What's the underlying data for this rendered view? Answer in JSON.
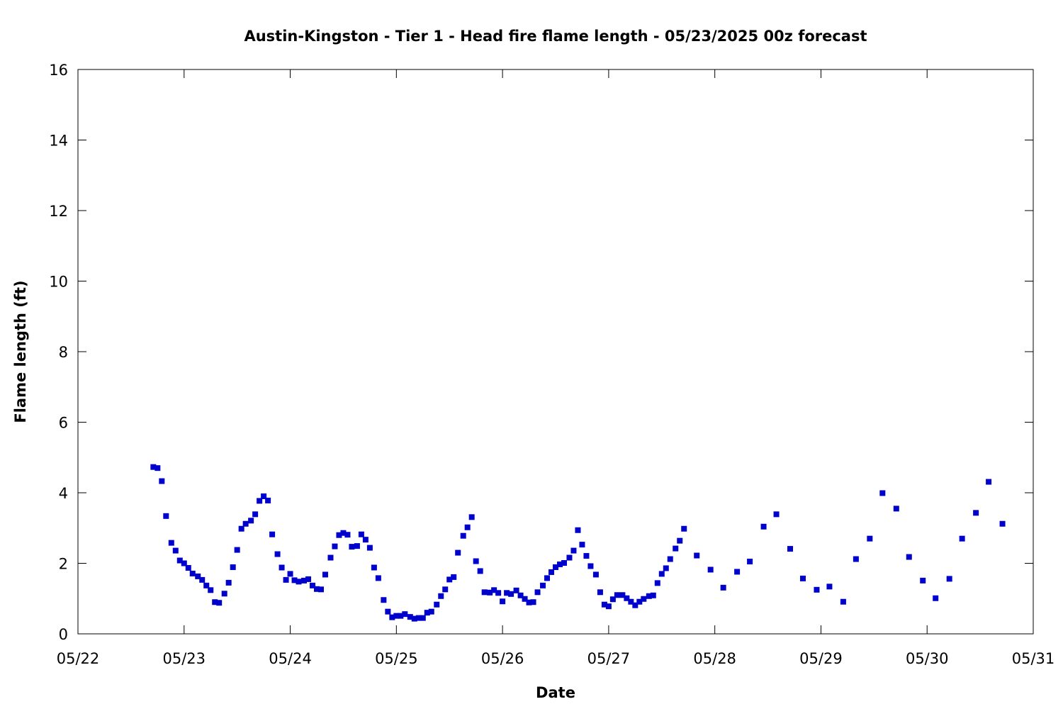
{
  "chart_data": {
    "type": "scatter",
    "title": "Austin-Kingston - Tier 1 - Head fire flame length - 05/23/2025 00z forecast",
    "xlabel": "Date",
    "ylabel": "Flame length (ft)",
    "x_unit": "day of May 2025",
    "xlim": [
      22,
      31
    ],
    "ylim": [
      0,
      16
    ],
    "x_ticks": [
      {
        "value": 22,
        "label": "05/22"
      },
      {
        "value": 23,
        "label": "05/23"
      },
      {
        "value": 24,
        "label": "05/24"
      },
      {
        "value": 25,
        "label": "05/25"
      },
      {
        "value": 26,
        "label": "05/26"
      },
      {
        "value": 27,
        "label": "05/27"
      },
      {
        "value": 28,
        "label": "05/28"
      },
      {
        "value": 29,
        "label": "05/29"
      },
      {
        "value": 30,
        "label": "05/30"
      },
      {
        "value": 31,
        "label": "05/31"
      }
    ],
    "y_ticks": [
      {
        "value": 0,
        "label": "0"
      },
      {
        "value": 2,
        "label": "2"
      },
      {
        "value": 4,
        "label": "4"
      },
      {
        "value": 6,
        "label": "6"
      },
      {
        "value": 8,
        "label": "8"
      },
      {
        "value": 10,
        "label": "10"
      },
      {
        "value": 12,
        "label": "12"
      },
      {
        "value": 14,
        "label": "14"
      },
      {
        "value": 16,
        "label": "16"
      }
    ],
    "grid": false,
    "marker": "square",
    "color": "#0000cc",
    "series": [
      {
        "points": [
          [
            22.71,
            4.73
          ],
          [
            22.75,
            4.7
          ],
          [
            22.79,
            4.33
          ],
          [
            22.83,
            3.34
          ],
          [
            22.88,
            2.58
          ],
          [
            22.92,
            2.36
          ],
          [
            22.96,
            2.08
          ],
          [
            23.0,
            2.0
          ],
          [
            23.04,
            1.87
          ],
          [
            23.08,
            1.71
          ],
          [
            23.13,
            1.63
          ],
          [
            23.17,
            1.53
          ],
          [
            23.21,
            1.37
          ],
          [
            23.25,
            1.24
          ],
          [
            23.29,
            0.9
          ],
          [
            23.33,
            0.88
          ],
          [
            23.38,
            1.14
          ],
          [
            23.42,
            1.45
          ],
          [
            23.46,
            1.89
          ],
          [
            23.5,
            2.38
          ],
          [
            23.54,
            2.98
          ],
          [
            23.58,
            3.12
          ],
          [
            23.63,
            3.21
          ],
          [
            23.67,
            3.39
          ],
          [
            23.71,
            3.77
          ],
          [
            23.75,
            3.9
          ],
          [
            23.79,
            3.78
          ],
          [
            23.83,
            2.82
          ],
          [
            23.88,
            2.26
          ],
          [
            23.92,
            1.88
          ],
          [
            23.96,
            1.53
          ],
          [
            24.0,
            1.7
          ],
          [
            24.04,
            1.52
          ],
          [
            24.08,
            1.48
          ],
          [
            24.13,
            1.51
          ],
          [
            24.17,
            1.55
          ],
          [
            24.21,
            1.37
          ],
          [
            24.25,
            1.27
          ],
          [
            24.29,
            1.26
          ],
          [
            24.33,
            1.68
          ],
          [
            24.38,
            2.16
          ],
          [
            24.42,
            2.48
          ],
          [
            24.46,
            2.8
          ],
          [
            24.5,
            2.86
          ],
          [
            24.54,
            2.81
          ],
          [
            24.58,
            2.47
          ],
          [
            24.63,
            2.49
          ],
          [
            24.67,
            2.82
          ],
          [
            24.71,
            2.67
          ],
          [
            24.75,
            2.44
          ],
          [
            24.79,
            1.88
          ],
          [
            24.83,
            1.58
          ],
          [
            24.88,
            0.96
          ],
          [
            24.92,
            0.63
          ],
          [
            24.96,
            0.47
          ],
          [
            25.0,
            0.51
          ],
          [
            25.04,
            0.51
          ],
          [
            25.08,
            0.56
          ],
          [
            25.13,
            0.48
          ],
          [
            25.17,
            0.43
          ],
          [
            25.21,
            0.45
          ],
          [
            25.25,
            0.45
          ],
          [
            25.29,
            0.6
          ],
          [
            25.33,
            0.63
          ],
          [
            25.38,
            0.83
          ],
          [
            25.42,
            1.07
          ],
          [
            25.46,
            1.26
          ],
          [
            25.5,
            1.54
          ],
          [
            25.54,
            1.61
          ],
          [
            25.58,
            2.3
          ],
          [
            25.63,
            2.78
          ],
          [
            25.67,
            3.02
          ],
          [
            25.71,
            3.31
          ],
          [
            25.75,
            2.06
          ],
          [
            25.79,
            1.78
          ],
          [
            25.83,
            1.18
          ],
          [
            25.88,
            1.17
          ],
          [
            25.92,
            1.24
          ],
          [
            25.96,
            1.16
          ],
          [
            26.0,
            0.92
          ],
          [
            26.04,
            1.16
          ],
          [
            26.08,
            1.13
          ],
          [
            26.13,
            1.23
          ],
          [
            26.17,
            1.09
          ],
          [
            26.21,
            0.99
          ],
          [
            26.25,
            0.89
          ],
          [
            26.29,
            0.9
          ],
          [
            26.33,
            1.18
          ],
          [
            26.38,
            1.37
          ],
          [
            26.42,
            1.58
          ],
          [
            26.46,
            1.75
          ],
          [
            26.5,
            1.89
          ],
          [
            26.54,
            1.97
          ],
          [
            26.58,
            2.01
          ],
          [
            26.63,
            2.16
          ],
          [
            26.67,
            2.36
          ],
          [
            26.71,
            2.94
          ],
          [
            26.75,
            2.53
          ],
          [
            26.79,
            2.21
          ],
          [
            26.83,
            1.92
          ],
          [
            26.88,
            1.68
          ],
          [
            26.92,
            1.18
          ],
          [
            26.96,
            0.83
          ],
          [
            27.0,
            0.78
          ],
          [
            27.04,
            0.98
          ],
          [
            27.08,
            1.1
          ],
          [
            27.13,
            1.1
          ],
          [
            27.17,
            1.01
          ],
          [
            27.21,
            0.91
          ],
          [
            27.25,
            0.81
          ],
          [
            27.29,
            0.91
          ],
          [
            27.33,
            0.99
          ],
          [
            27.38,
            1.07
          ],
          [
            27.42,
            1.09
          ],
          [
            27.46,
            1.44
          ],
          [
            27.5,
            1.7
          ],
          [
            27.54,
            1.86
          ],
          [
            27.58,
            2.12
          ],
          [
            27.63,
            2.42
          ],
          [
            27.67,
            2.64
          ],
          [
            27.71,
            2.98
          ],
          [
            27.83,
            2.22
          ],
          [
            27.96,
            1.82
          ],
          [
            28.08,
            1.31
          ],
          [
            28.21,
            1.76
          ],
          [
            28.33,
            2.05
          ],
          [
            28.46,
            3.04
          ],
          [
            28.58,
            3.39
          ],
          [
            28.71,
            2.41
          ],
          [
            28.83,
            1.57
          ],
          [
            28.96,
            1.25
          ],
          [
            29.08,
            1.34
          ],
          [
            29.21,
            0.91
          ],
          [
            29.33,
            2.12
          ],
          [
            29.46,
            2.7
          ],
          [
            29.58,
            3.99
          ],
          [
            29.71,
            3.55
          ],
          [
            29.83,
            2.18
          ],
          [
            29.96,
            1.51
          ],
          [
            30.08,
            1.01
          ],
          [
            30.21,
            1.56
          ],
          [
            30.33,
            2.7
          ],
          [
            30.46,
            3.43
          ],
          [
            30.58,
            4.31
          ],
          [
            30.71,
            3.12
          ]
        ]
      }
    ]
  }
}
